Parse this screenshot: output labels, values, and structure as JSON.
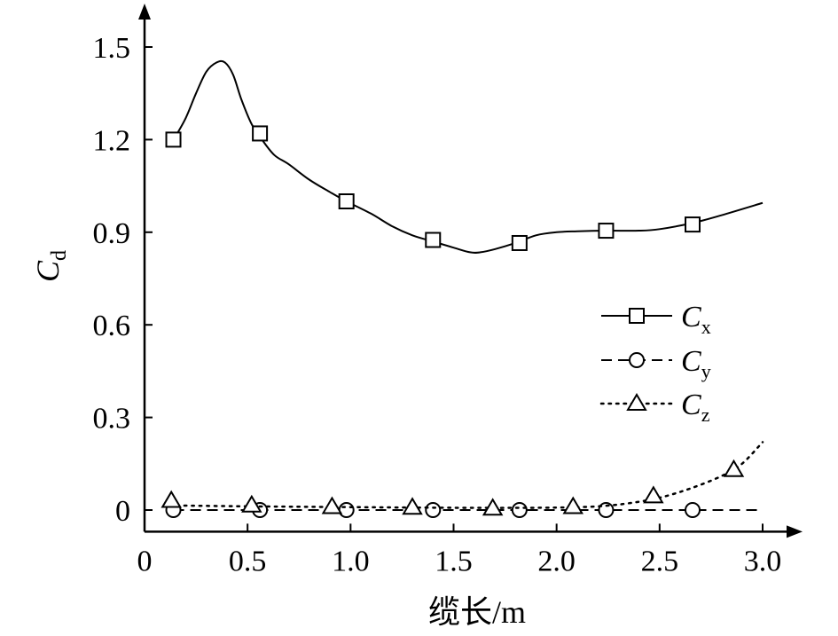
{
  "chart_data": {
    "type": "line",
    "xlabel": "缆长/m",
    "ylabel": {
      "main": "C",
      "sub": "d"
    },
    "xlim": [
      0,
      3.0
    ],
    "ylim": [
      -0.07,
      1.62
    ],
    "xticks": [
      0,
      0.5,
      1.0,
      1.5,
      2.0,
      2.5,
      3.0
    ],
    "xtick_labels": [
      "0",
      "0.5",
      "1.0",
      "1.5",
      "2.0",
      "2.5",
      "3.0"
    ],
    "yticks": [
      0,
      0.3,
      0.6,
      0.9,
      1.2,
      1.5
    ],
    "ytick_labels": [
      "0",
      "0.3",
      "0.6",
      "0.9",
      "1.2",
      "1.5"
    ],
    "grid": false,
    "legend_position": "right",
    "series": [
      {
        "name": "Cx",
        "label_main": "C",
        "label_sub": "x",
        "line_style": "solid",
        "marker": "square",
        "curve_x": [
          0.15,
          0.2,
          0.25,
          0.3,
          0.35,
          0.39,
          0.43,
          0.47,
          0.52,
          0.57,
          0.63,
          0.7,
          0.8,
          0.9,
          0.98,
          1.1,
          1.2,
          1.3,
          1.4,
          1.5,
          1.58,
          1.63,
          1.7,
          1.8,
          1.9,
          2.0,
          2.1,
          2.24,
          2.4,
          2.5,
          2.66,
          2.8,
          3.0
        ],
        "curve_y": [
          1.21,
          1.27,
          1.35,
          1.42,
          1.45,
          1.45,
          1.41,
          1.33,
          1.25,
          1.2,
          1.15,
          1.12,
          1.07,
          1.03,
          1.0,
          0.96,
          0.92,
          0.89,
          0.87,
          0.85,
          0.835,
          0.835,
          0.845,
          0.865,
          0.89,
          0.9,
          0.903,
          0.905,
          0.905,
          0.91,
          0.93,
          0.955,
          0.995
        ],
        "marker_x": [
          0.14,
          0.56,
          0.98,
          1.4,
          1.82,
          2.24,
          2.66
        ],
        "marker_y": [
          1.2,
          1.22,
          1.0,
          0.875,
          0.865,
          0.905,
          0.925
        ]
      },
      {
        "name": "Cy",
        "label_main": "C",
        "label_sub": "y",
        "line_style": "dashed",
        "marker": "circle",
        "curve_x": [
          0.14,
          3.0
        ],
        "curve_y": [
          0,
          0
        ],
        "marker_x": [
          0.14,
          0.56,
          0.98,
          1.4,
          1.82,
          2.24,
          2.66
        ],
        "marker_y": [
          0,
          0,
          0,
          0,
          0,
          0,
          0
        ]
      },
      {
        "name": "Cz",
        "label_main": "C",
        "label_sub": "z",
        "line_style": "dotted",
        "marker": "triangle",
        "curve_x": [
          0.12,
          0.5,
          0.9,
          1.3,
          1.7,
          2.0,
          2.2,
          2.35,
          2.5,
          2.65,
          2.8,
          2.9,
          3.0
        ],
        "curve_y": [
          0.015,
          0.012,
          0.01,
          0.008,
          0.007,
          0.008,
          0.012,
          0.022,
          0.04,
          0.07,
          0.11,
          0.15,
          0.22
        ],
        "marker_x": [
          0.13,
          0.52,
          0.91,
          1.3,
          1.69,
          2.08,
          2.47,
          2.86
        ],
        "marker_y": [
          0.03,
          0.015,
          0.01,
          0.008,
          0.005,
          0.01,
          0.045,
          0.13
        ]
      }
    ]
  }
}
